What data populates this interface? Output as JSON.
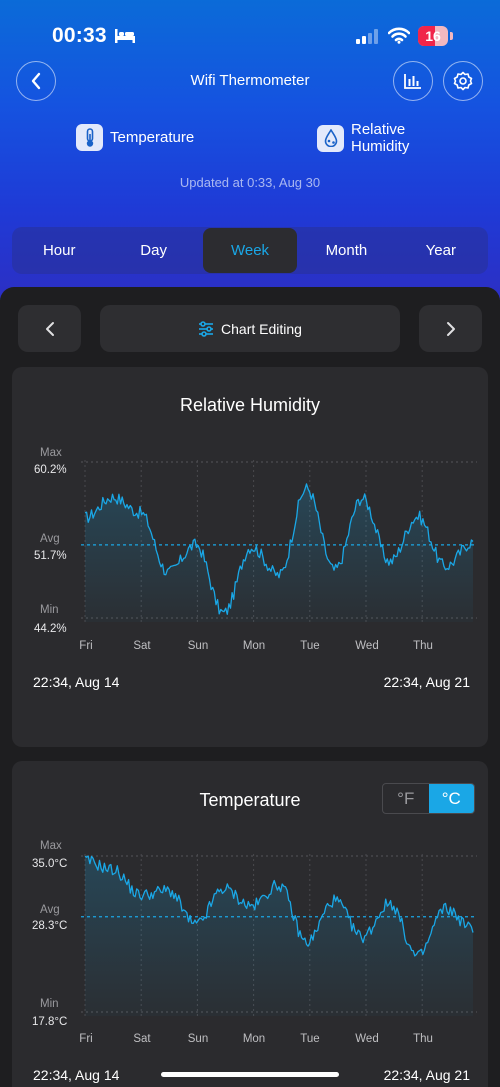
{
  "status": {
    "time": "00:33",
    "battery": "16"
  },
  "header": {
    "title": "Wifi Thermometer"
  },
  "metrics": {
    "temperature": "Temperature",
    "humidity": "Relative Humidity"
  },
  "updated": "Updated at 0:33,  Aug 30",
  "tabs": [
    "Hour",
    "Day",
    "Week",
    "Month",
    "Year"
  ],
  "active_tab": "Week",
  "toolbar": {
    "edit_label": "Chart Editing"
  },
  "humidity_card": {
    "title": "Relative Humidity",
    "max_label": "Max",
    "max_value": "60.2%",
    "avg_label": "Avg",
    "avg_value": "51.7%",
    "min_label": "Min",
    "min_value": "44.2%",
    "x_labels": [
      "Fri",
      "Sat",
      "Sun",
      "Mon",
      "Tue",
      "Wed",
      "Thu"
    ],
    "range_start": "22:34,  Aug 14",
    "range_end": "22:34,  Aug 21"
  },
  "temperature_card": {
    "title": "Temperature",
    "unit_f": "°F",
    "unit_c": "°C",
    "selected_unit": "°C",
    "max_label": "Max",
    "max_value": "35.0°C",
    "avg_label": "Avg",
    "avg_value": "28.3°C",
    "min_label": "Min",
    "min_value": "17.8°C",
    "x_labels": [
      "Fri",
      "Sat",
      "Sun",
      "Mon",
      "Tue",
      "Wed",
      "Thu"
    ],
    "range_start": "22:34,  Aug 14",
    "range_end": "22:34,  Aug 21"
  },
  "colors": {
    "accent": "#1aa7e6",
    "line": "#1aa7e6"
  },
  "chart_data": [
    {
      "type": "line",
      "title": "Relative Humidity",
      "ylim": [
        44.2,
        60.2
      ],
      "avg": 51.7,
      "x": [
        "Fri",
        "Fri 12h",
        "Sat",
        "Sat 12h",
        "Sun",
        "Sun 12h",
        "Mon",
        "Mon 12h",
        "Tue",
        "Tue 12h",
        "Wed",
        "Wed 12h",
        "Thu",
        "Thu 12h",
        "Fri"
      ],
      "values": [
        54.5,
        56.6,
        55.0,
        48.9,
        51.7,
        44.7,
        51.5,
        48.6,
        57.5,
        49.1,
        56.5,
        50.0,
        54.6,
        49.5,
        52.0
      ]
    },
    {
      "type": "line",
      "title": "Temperature",
      "ylim": [
        17.8,
        35.0
      ],
      "avg": 28.3,
      "x": [
        "Fri",
        "Fri 12h",
        "Sat",
        "Sat 12h",
        "Sun",
        "Sun 12h",
        "Mon",
        "Mon 12h",
        "Tue",
        "Tue 12h",
        "Wed",
        "Wed 12h",
        "Thu",
        "Thu 12h",
        "Fri"
      ],
      "values": [
        34.5,
        33.5,
        30.7,
        31.2,
        27.4,
        31.4,
        29.5,
        31.8,
        25.5,
        30.1,
        26.1,
        29.8,
        23.9,
        29.2,
        27.0
      ]
    }
  ]
}
